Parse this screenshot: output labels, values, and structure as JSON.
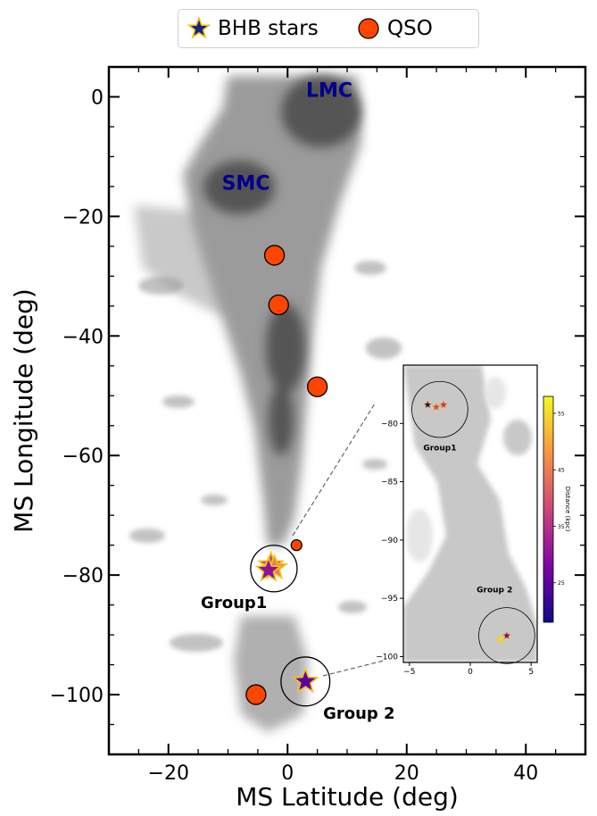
{
  "chart_data": {
    "type": "scatter",
    "xlabel": "MS Latitude (deg)",
    "ylabel": "MS Longitude (deg)",
    "xlim": [
      -30,
      50
    ],
    "ylim": [
      -110,
      5
    ],
    "xticks": [
      -20,
      0,
      20,
      40
    ],
    "yticks": [
      0,
      -20,
      -40,
      -60,
      -80,
      -100
    ],
    "xtick_labels": [
      "−20",
      "0",
      "20",
      "40"
    ],
    "ytick_labels": [
      "0",
      "−20",
      "−40",
      "−60",
      "−80",
      "−100"
    ],
    "legend": {
      "position": "top-center",
      "entries": [
        "BHB stars",
        "QSO"
      ]
    },
    "colors": {
      "qso": "#ff4500",
      "bhb_star_fill": "#1a237e",
      "bhb_star_edge": "#f5c518",
      "text_annotation": "#00008b"
    },
    "annotations": [
      {
        "text": "LMC",
        "x": 7,
        "y": 0
      },
      {
        "text": "SMC",
        "x": -7,
        "y": -15.5
      },
      {
        "text": "Group1",
        "x": -9,
        "y": -85.5
      },
      {
        "text": "Group 2",
        "x": 12,
        "y": -104
      }
    ],
    "qso": [
      {
        "x": -2.2,
        "y": -26.5
      },
      {
        "x": -1.5,
        "y": -34.8
      },
      {
        "x": 5,
        "y": -48.5
      },
      {
        "x": 1.5,
        "y": -75
      },
      {
        "x": -5.3,
        "y": -100
      }
    ],
    "bhb_stars": [
      {
        "x": -2.8,
        "y": -78.3,
        "distance_kpc": 38
      },
      {
        "x": -2.2,
        "y": -78.8,
        "distance_kpc": 45
      },
      {
        "x": -3.2,
        "y": -79.2,
        "distance_kpc": 30
      },
      {
        "x": 3,
        "y": -97.8,
        "distance_kpc": 25
      }
    ],
    "group_circles": [
      {
        "name": "Group1",
        "x": -2.3,
        "y": -78.9,
        "r": 3.9
      },
      {
        "name": "Group 2",
        "x": 3,
        "y": -97.8,
        "r": 4.1
      }
    ],
    "inset": {
      "xlim": [
        -5.5,
        5.5
      ],
      "ylim": [
        -100.5,
        -75
      ],
      "xticks": [
        -5,
        0,
        5
      ],
      "yticks": [
        -80,
        -85,
        -90,
        -95,
        -100
      ],
      "xtick_labels": [
        "−5",
        "0",
        "5"
      ],
      "ytick_labels": [
        "−80",
        "−85",
        "−90",
        "−95",
        "−100"
      ],
      "labels": [
        {
          "text": "Group1",
          "x": -2.5,
          "y": -82.3
        },
        {
          "text": "Group 2",
          "x": 2,
          "y": -94.5
        }
      ],
      "stars": [
        {
          "x": -3.5,
          "y": -78.4,
          "distance_kpc": 20
        },
        {
          "x": -2.8,
          "y": -78.6,
          "distance_kpc": 38
        },
        {
          "x": -2.2,
          "y": -78.4,
          "distance_kpc": 35
        },
        {
          "x": 2.5,
          "y": -98.5,
          "distance_kpc": 55
        },
        {
          "x": 3,
          "y": -98.2,
          "distance_kpc": 28
        }
      ],
      "circles": [
        {
          "x": -2.5,
          "y": -78.8,
          "r": 2.3
        },
        {
          "x": 3,
          "y": -98.2,
          "r": 2.3
        }
      ]
    },
    "colorbar": {
      "label": "Distance (kpc)",
      "ticks": [
        25,
        35,
        45,
        55
      ],
      "tick_labels": [
        "25",
        "35",
        "45",
        "55"
      ],
      "range": [
        18,
        58
      ],
      "colormap": "plasma"
    }
  }
}
